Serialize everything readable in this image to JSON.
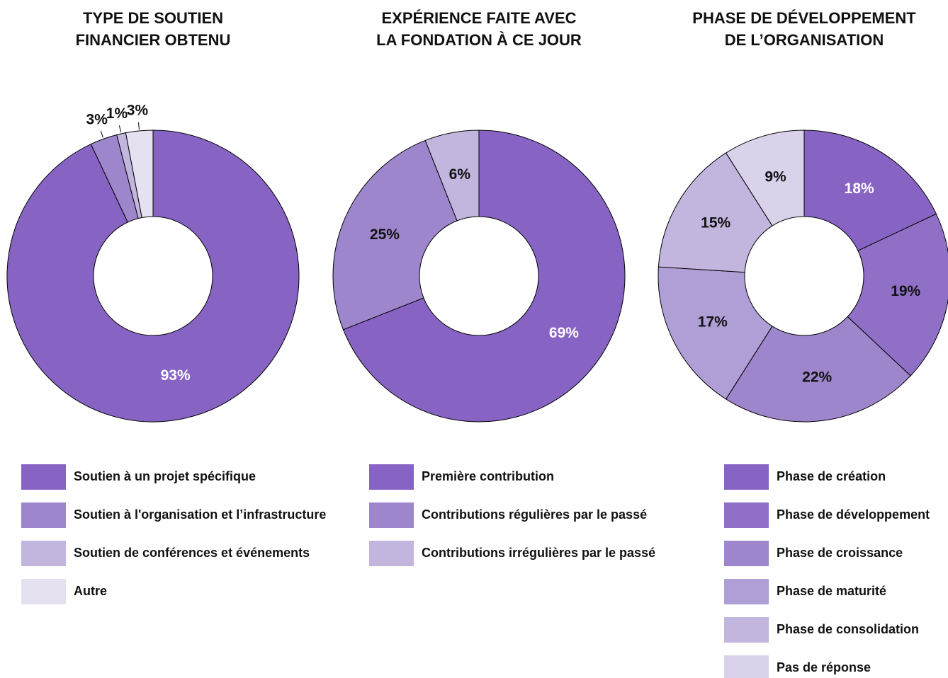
{
  "chart_data": [
    {
      "type": "pie",
      "title": [
        "TYPE DE SOUTIEN",
        "FINANCIER OBTENU"
      ],
      "categories": [
        "Soutien à un projet spécifique",
        "Soutien à l'organisation et l’infrastructure",
        "Soutien de conférences et événements",
        "Autre"
      ],
      "values": [
        93,
        3,
        1,
        3
      ],
      "value_labels": [
        "93%",
        "3%",
        "1%",
        "3%"
      ],
      "colors": [
        "#8764c4",
        "#9d86cc",
        "#c2b5de",
        "#e6e1f1"
      ]
    },
    {
      "type": "pie",
      "title": [
        "EXPÉRIENCE FAITE AVEC",
        "LA FONDATION À CE JOUR"
      ],
      "categories": [
        "Première contribution",
        "Contributions régulières par le passé",
        "Contributions irrégulières par le passé"
      ],
      "values": [
        69,
        25,
        6
      ],
      "value_labels": [
        "69%",
        "25%",
        "6%"
      ],
      "colors": [
        "#8764c4",
        "#9d86cc",
        "#c2b5de"
      ]
    },
    {
      "type": "pie",
      "title": [
        "PHASE DE DÉVELOPPEMENT",
        "DE L’ORGANISATION"
      ],
      "categories": [
        "Phase de création",
        "Phase de développement",
        "Phase de croissance",
        "Phase de maturité",
        "Phase de consolidation",
        "Pas de réponse"
      ],
      "values": [
        18,
        19,
        22,
        17,
        15,
        9
      ],
      "value_labels": [
        "18%",
        "19%",
        "22%",
        "17%",
        "15%",
        "9%"
      ],
      "colors": [
        "#8764c4",
        "#9070c7",
        "#9d86cc",
        "#b09fd6",
        "#c2b5de",
        "#dad2ea"
      ]
    }
  ]
}
